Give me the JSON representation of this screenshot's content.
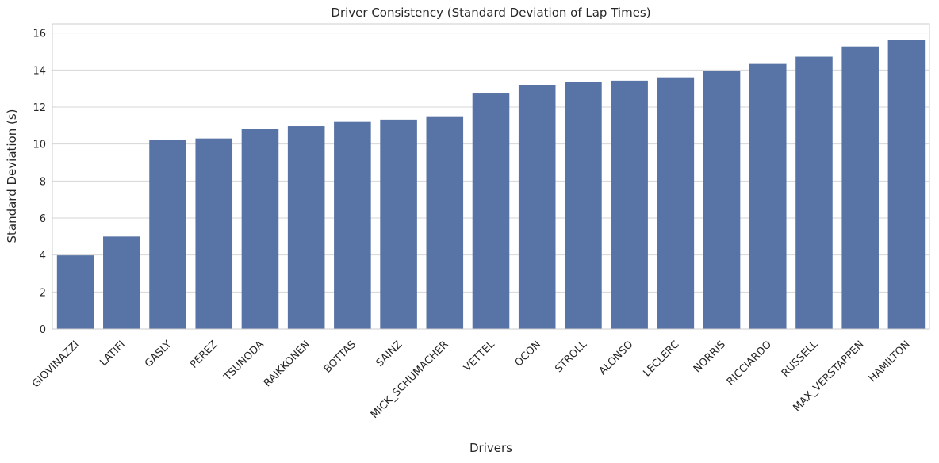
{
  "chart_data": {
    "type": "bar",
    "title": "Driver Consistency (Standard Deviation of Lap Times)",
    "xlabel": "Drivers",
    "ylabel": "Standard Deviation (s)",
    "ylim": [
      0,
      16.5
    ],
    "yticks": [
      0,
      2,
      4,
      6,
      8,
      10,
      12,
      14,
      16
    ],
    "grid": "horizontal",
    "bar_color": "#5874a6",
    "categories": [
      "GIOVINAZZI",
      "LATIFI",
      "GASLY",
      "PEREZ",
      "TSUNODA",
      "RAIKKONEN",
      "BOTTAS",
      "SAINZ",
      "MICK_SCHUMACHER",
      "VETTEL",
      "OCON",
      "STROLL",
      "ALONSO",
      "LECLERC",
      "NORRIS",
      "RICCIARDO",
      "RUSSELL",
      "MAX_VERSTAPPEN",
      "HAMILTON"
    ],
    "values": [
      3.98,
      5.0,
      10.2,
      10.3,
      10.8,
      10.97,
      11.2,
      11.32,
      11.5,
      12.77,
      13.2,
      13.37,
      13.42,
      13.6,
      13.97,
      14.33,
      14.72,
      15.27,
      15.64
    ]
  }
}
